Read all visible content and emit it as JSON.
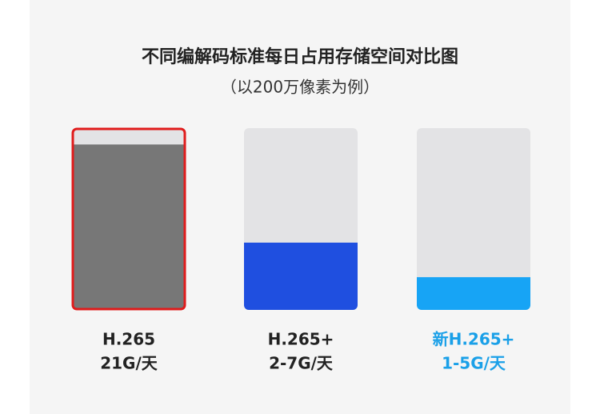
{
  "chart_data": {
    "type": "bar",
    "title": "不同编解码标准每日占用存储空间对比图",
    "subtitle": "（以200万像素为例）",
    "categories": [
      "H.265",
      "H.265+",
      "新H.265+"
    ],
    "values": [
      91,
      37,
      18
    ],
    "value_labels": [
      "21G/天",
      "2-7G/天",
      "1-5G/天"
    ],
    "colors": [
      "#777777",
      "#1f4fe0",
      "#17a4f5"
    ],
    "label_colors": [
      "#222222",
      "#222222",
      "#1aa0e8"
    ],
    "ylim": [
      0,
      100
    ]
  }
}
